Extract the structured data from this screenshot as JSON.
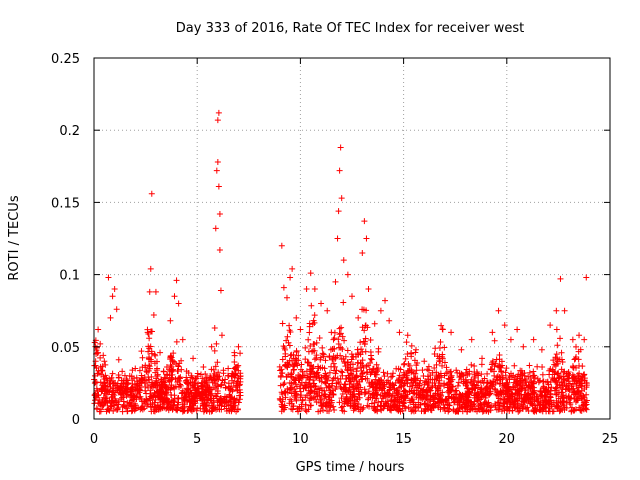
{
  "chart_data": {
    "type": "scatter",
    "title": "Day 333 of 2016, Rate Of TEC Index for receiver west",
    "xlabel": "GPS time / hours",
    "ylabel": "ROTI / TECUs",
    "xlim": [
      0,
      25
    ],
    "ylim": [
      0,
      0.25
    ],
    "xticks": [
      0,
      5,
      10,
      15,
      20,
      25
    ],
    "xtick_labels": [
      "0",
      "5",
      "10",
      "15",
      "20",
      "25"
    ],
    "yticks": [
      0,
      0.05,
      0.1,
      0.15,
      0.2,
      0.25
    ],
    "ytick_labels": [
      "0",
      "0.05",
      "0.1",
      "0.15",
      "0.2",
      "0.25"
    ],
    "grid": true,
    "marker": "plus",
    "color": "#ff0000",
    "series": [
      {
        "name": "ROTI",
        "description": "Dense cloud of ROTI samples, baseline 0.005-0.03 TECU/s, gap between ~7.0 h and ~9.0 h",
        "points": [
          [
            0.1,
            0.045
          ],
          [
            0.2,
            0.062
          ],
          [
            0.3,
            0.052
          ],
          [
            0.5,
            0.04
          ],
          [
            0.7,
            0.098
          ],
          [
            0.8,
            0.07
          ],
          [
            0.9,
            0.085
          ],
          [
            1.0,
            0.09
          ],
          [
            1.1,
            0.076
          ],
          [
            1.2,
            0.041
          ],
          [
            1.5,
            0.03
          ],
          [
            2.0,
            0.035
          ],
          [
            2.3,
            0.047
          ],
          [
            2.6,
            0.06
          ],
          [
            2.7,
            0.088
          ],
          [
            2.75,
            0.104
          ],
          [
            2.8,
            0.156
          ],
          [
            2.9,
            0.072
          ],
          [
            3.0,
            0.088
          ],
          [
            3.2,
            0.046
          ],
          [
            3.7,
            0.068
          ],
          [
            3.9,
            0.085
          ],
          [
            4.0,
            0.096
          ],
          [
            4.1,
            0.08
          ],
          [
            4.3,
            0.055
          ],
          [
            4.8,
            0.042
          ],
          [
            5.3,
            0.036
          ],
          [
            5.7,
            0.05
          ],
          [
            5.85,
            0.063
          ],
          [
            5.9,
            0.132
          ],
          [
            5.95,
            0.172
          ],
          [
            6.0,
            0.178
          ],
          [
            6.0,
            0.207
          ],
          [
            6.05,
            0.212
          ],
          [
            6.05,
            0.161
          ],
          [
            6.1,
            0.142
          ],
          [
            6.1,
            0.117
          ],
          [
            6.15,
            0.089
          ],
          [
            6.2,
            0.058
          ],
          [
            6.5,
            0.035
          ],
          [
            6.8,
            0.046
          ],
          [
            7.0,
            0.05
          ],
          [
            9.1,
            0.12
          ],
          [
            9.2,
            0.091
          ],
          [
            9.35,
            0.084
          ],
          [
            9.5,
            0.098
          ],
          [
            9.6,
            0.104
          ],
          [
            9.8,
            0.07
          ],
          [
            10.0,
            0.062
          ],
          [
            10.3,
            0.09
          ],
          [
            10.5,
            0.101
          ],
          [
            10.7,
            0.09
          ],
          [
            11.0,
            0.08
          ],
          [
            11.3,
            0.075
          ],
          [
            11.5,
            0.06
          ],
          [
            11.7,
            0.095
          ],
          [
            11.8,
            0.125
          ],
          [
            11.85,
            0.144
          ],
          [
            11.9,
            0.172
          ],
          [
            11.95,
            0.188
          ],
          [
            12.0,
            0.153
          ],
          [
            12.1,
            0.11
          ],
          [
            12.3,
            0.1
          ],
          [
            12.5,
            0.085
          ],
          [
            12.8,
            0.07
          ],
          [
            13.0,
            0.115
          ],
          [
            13.1,
            0.137
          ],
          [
            13.2,
            0.125
          ],
          [
            13.3,
            0.09
          ],
          [
            13.6,
            0.066
          ],
          [
            13.9,
            0.075
          ],
          [
            14.1,
            0.082
          ],
          [
            14.3,
            0.068
          ],
          [
            14.8,
            0.06
          ],
          [
            15.2,
            0.058
          ],
          [
            15.6,
            0.048
          ],
          [
            16.0,
            0.04
          ],
          [
            16.5,
            0.045
          ],
          [
            16.9,
            0.062
          ],
          [
            17.3,
            0.06
          ],
          [
            17.8,
            0.048
          ],
          [
            18.3,
            0.055
          ],
          [
            18.8,
            0.042
          ],
          [
            19.3,
            0.06
          ],
          [
            19.6,
            0.075
          ],
          [
            19.9,
            0.065
          ],
          [
            20.2,
            0.055
          ],
          [
            20.5,
            0.062
          ],
          [
            20.8,
            0.05
          ],
          [
            21.3,
            0.055
          ],
          [
            21.7,
            0.048
          ],
          [
            22.1,
            0.065
          ],
          [
            22.4,
            0.075
          ],
          [
            22.6,
            0.097
          ],
          [
            22.8,
            0.075
          ],
          [
            23.2,
            0.055
          ],
          [
            23.5,
            0.058
          ],
          [
            23.75,
            0.055
          ],
          [
            23.85,
            0.098
          ]
        ]
      }
    ],
    "dense_clusters": [
      {
        "start": 0.0,
        "end": 7.1,
        "base": 0.016,
        "spread": 0.014,
        "bursts": [
          [
            0.2,
            0.045
          ],
          [
            2.7,
            0.06
          ],
          [
            3.9,
            0.05
          ],
          [
            6.0,
            0.04
          ],
          [
            7.0,
            0.035
          ]
        ]
      },
      {
        "start": 9.0,
        "end": 13.8,
        "base": 0.022,
        "spread": 0.025,
        "bursts": [
          [
            9.4,
            0.05
          ],
          [
            10.6,
            0.045
          ],
          [
            11.9,
            0.06
          ],
          [
            13.1,
            0.05
          ]
        ]
      },
      {
        "start": 13.8,
        "end": 23.9,
        "base": 0.016,
        "spread": 0.018,
        "bursts": [
          [
            15.3,
            0.03
          ],
          [
            16.8,
            0.035
          ],
          [
            19.6,
            0.035
          ],
          [
            22.5,
            0.04
          ],
          [
            23.4,
            0.03
          ]
        ]
      }
    ]
  }
}
